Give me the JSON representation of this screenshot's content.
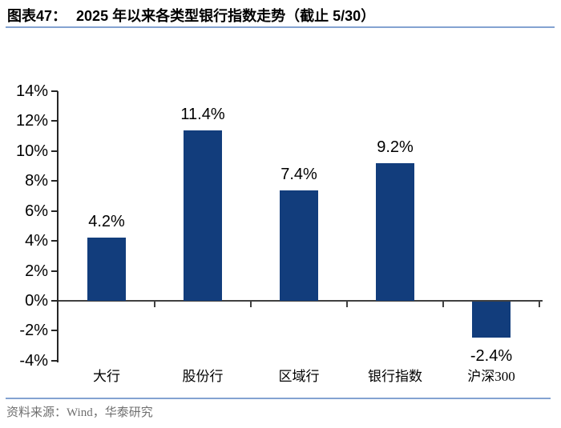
{
  "figure": {
    "label": "图表47：",
    "title": "2025 年以来各类型银行指数走势（截止 5/30）"
  },
  "chart_data": {
    "type": "bar",
    "title": "2025 年以来各类型银行指数走势（截止 5/30）",
    "categories": [
      "大行",
      "股份行",
      "区域行",
      "银行指数",
      "沪深300"
    ],
    "values": [
      4.2,
      11.4,
      7.4,
      9.2,
      -2.4
    ],
    "data_labels": [
      "4.2%",
      "11.4%",
      "7.4%",
      "9.2%",
      "-2.4%"
    ],
    "xlabel": "",
    "ylabel": "",
    "ylim": [
      -4,
      14
    ],
    "ytick_step": 2,
    "ytick_labels": [
      "14%",
      "12%",
      "10%",
      "8%",
      "6%",
      "4%",
      "2%",
      "0%",
      "-2%",
      "-4%"
    ],
    "grid": false,
    "legend": "none"
  },
  "colors": {
    "bar": "#123D7C",
    "axis": "#404040",
    "yaxis": "#262626",
    "rule": "#84A3D1",
    "source_text": "#6F6F6F",
    "title_text": "#000000"
  },
  "source": {
    "text": "资料来源：Wind，华泰研究"
  }
}
